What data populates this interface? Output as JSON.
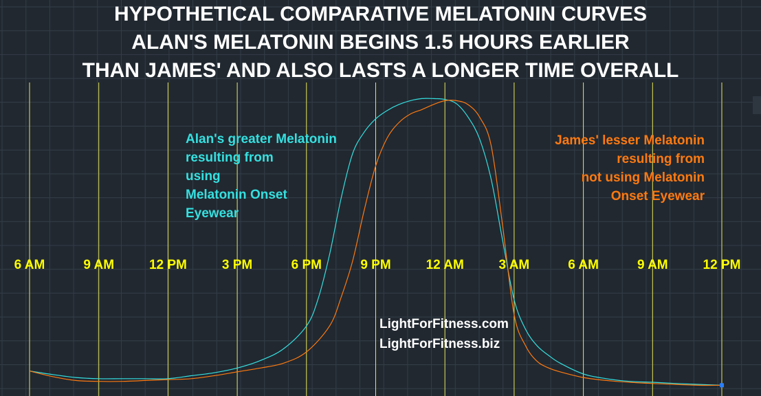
{
  "title_lines": [
    "HYPOTHETICAL COMPARATIVE MELATONIN CURVES",
    "ALAN'S MELATONIN BEGINS 1.5 HOURS EARLIER",
    "THAN JAMES' AND ALSO LASTS A LONGER TIME OVERALL"
  ],
  "annotations": {
    "alan": [
      "Alan's greater Melatonin",
      "resulting from",
      "using",
      "Melatonin Onset",
      "Eyewear"
    ],
    "james": [
      "James' lesser Melatonin",
      "resulting from",
      "not using Melatonin",
      "Onset Eyewear"
    ]
  },
  "watermark": [
    "LightForFitness.com",
    "LightForFitness.biz"
  ],
  "colors": {
    "background": "#212830",
    "grid": "#343d48",
    "vline": "#e8e85a",
    "tick_label": "#ffff00",
    "title": "#ffffff",
    "alan": "#35e0e0",
    "james": "#ff7a10",
    "watermark": "#ffffff",
    "endpoint": "#2a7fff"
  },
  "chart_data": {
    "type": "line",
    "title": "HYPOTHETICAL COMPARATIVE MELATONIN CURVES",
    "xlabel": "",
    "ylabel": "",
    "x_unit": "hours",
    "x_ticks": [
      0,
      3,
      6,
      9,
      12,
      15,
      18,
      21,
      24,
      27,
      30
    ],
    "x_tick_labels": [
      "6 AM",
      "9 AM",
      "12 PM",
      "3 PM",
      "6 PM",
      "9 PM",
      "12 AM",
      "3 AM",
      "6 AM",
      "9 AM",
      "12 PM"
    ],
    "xlim": [
      0,
      30
    ],
    "ylim": [
      0,
      100
    ],
    "grid": true,
    "series": [
      {
        "name": "Alan's greater Melatonin",
        "x": [
          0,
          1,
          2,
          3,
          4,
          5,
          6,
          7,
          8,
          9,
          10,
          11,
          12,
          12.5,
          13,
          13.5,
          14,
          14.5,
          15,
          15.5,
          16,
          16.5,
          17,
          17.5,
          18,
          18.5,
          19,
          19.5,
          20,
          20.5,
          21,
          21.5,
          22,
          22.5,
          23,
          24,
          25,
          26,
          27,
          28,
          29,
          30
        ],
        "y": [
          6.1,
          4.9,
          3.9,
          3.5,
          3.5,
          3.5,
          3.5,
          4.5,
          5.5,
          7.1,
          9.6,
          13.5,
          21.2,
          30.2,
          45.2,
          64.1,
          79.1,
          86.3,
          90.8,
          93.6,
          95.6,
          96.9,
          97.6,
          97.6,
          97.3,
          95.9,
          91.4,
          84.1,
          70.7,
          50.0,
          30.0,
          20.0,
          14.5,
          11.3,
          8.7,
          5.1,
          3.5,
          2.6,
          2.3,
          1.9,
          1.6,
          1.3
        ]
      },
      {
        "name": "James' lesser Melatonin",
        "x": [
          0,
          1,
          2,
          3,
          4,
          5,
          6,
          7,
          8,
          9,
          10,
          11,
          12,
          13,
          13.5,
          14,
          14.5,
          15,
          15.5,
          16,
          16.5,
          17,
          17.5,
          18,
          18.5,
          19,
          19.5,
          20,
          20.5,
          21,
          21.5,
          22,
          22.5,
          23,
          24,
          25,
          26,
          27,
          28,
          29,
          30
        ],
        "y": [
          6.1,
          4.2,
          2.9,
          2.6,
          2.6,
          2.9,
          3.2,
          3.5,
          4.5,
          5.8,
          7.1,
          8.7,
          12.5,
          21.2,
          30.8,
          43.0,
          60.0,
          75.0,
          84.4,
          89.5,
          92.4,
          93.9,
          95.6,
          96.9,
          96.9,
          95.6,
          91.4,
          82.0,
          55.0,
          25.0,
          14.5,
          9.3,
          7.1,
          5.8,
          3.9,
          2.9,
          2.3,
          1.9,
          1.6,
          1.3,
          1.3
        ]
      }
    ]
  }
}
